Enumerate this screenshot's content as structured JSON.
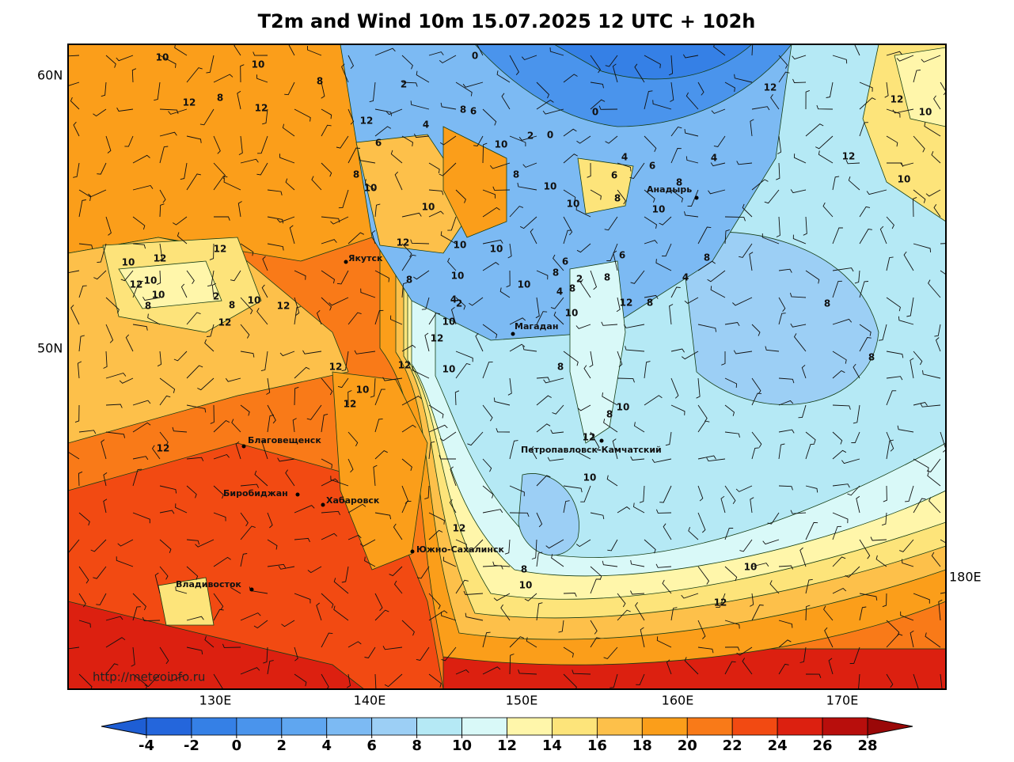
{
  "title": "T2m and Wind 10m 15.07.2025 12 UTC + 102h",
  "source": "http://meteoinfo.ru",
  "lat_labels": [
    "60N",
    "50N"
  ],
  "lon_labels": [
    "130E",
    "140E",
    "150E",
    "160E",
    "170E",
    "180E"
  ],
  "cities": [
    "Якутск",
    "Магадан",
    "Анадырь",
    "Петропавловск-Камчатский",
    "Благовещенск",
    "Биробиджан",
    "Хабаровск",
    "Южно-Сахалинск",
    "Владивосток"
  ],
  "contour_labels": [
    10,
    10,
    8,
    2,
    0,
    12,
    8,
    12,
    12,
    6,
    4,
    8,
    6,
    10,
    2,
    0,
    0,
    12,
    12,
    10,
    12,
    10,
    4,
    6,
    4,
    8,
    10,
    8,
    10,
    6,
    8,
    10,
    10,
    8,
    10,
    12,
    10,
    10,
    10,
    12,
    12,
    12,
    10,
    10,
    8,
    2,
    8,
    10,
    12,
    12,
    8,
    10,
    10,
    6,
    8,
    6,
    8,
    4,
    2,
    8,
    4,
    8,
    12,
    8,
    8,
    10,
    4,
    2,
    10,
    12,
    12,
    12,
    10,
    8,
    8,
    10,
    12,
    10,
    8,
    12,
    12,
    10,
    12,
    8,
    10,
    10,
    12
  ],
  "colorbar": {
    "ticks": [
      -4,
      -2,
      0,
      2,
      4,
      6,
      8,
      10,
      12,
      14,
      16,
      18,
      20,
      22,
      24,
      26,
      28
    ],
    "colors": [
      "#2466dc",
      "#3580e6",
      "#4a94ec",
      "#5fa6f0",
      "#7cbaf3",
      "#9ccff5",
      "#b5e9f5",
      "#d9f9f8",
      "#fff6aa",
      "#fde47a",
      "#fdc04a",
      "#fb9e1a",
      "#f97a18",
      "#f24a12",
      "#dc2010",
      "#b80e0c"
    ],
    "under_color": "#1e5ed4",
    "over_color": "#9a0808"
  }
}
